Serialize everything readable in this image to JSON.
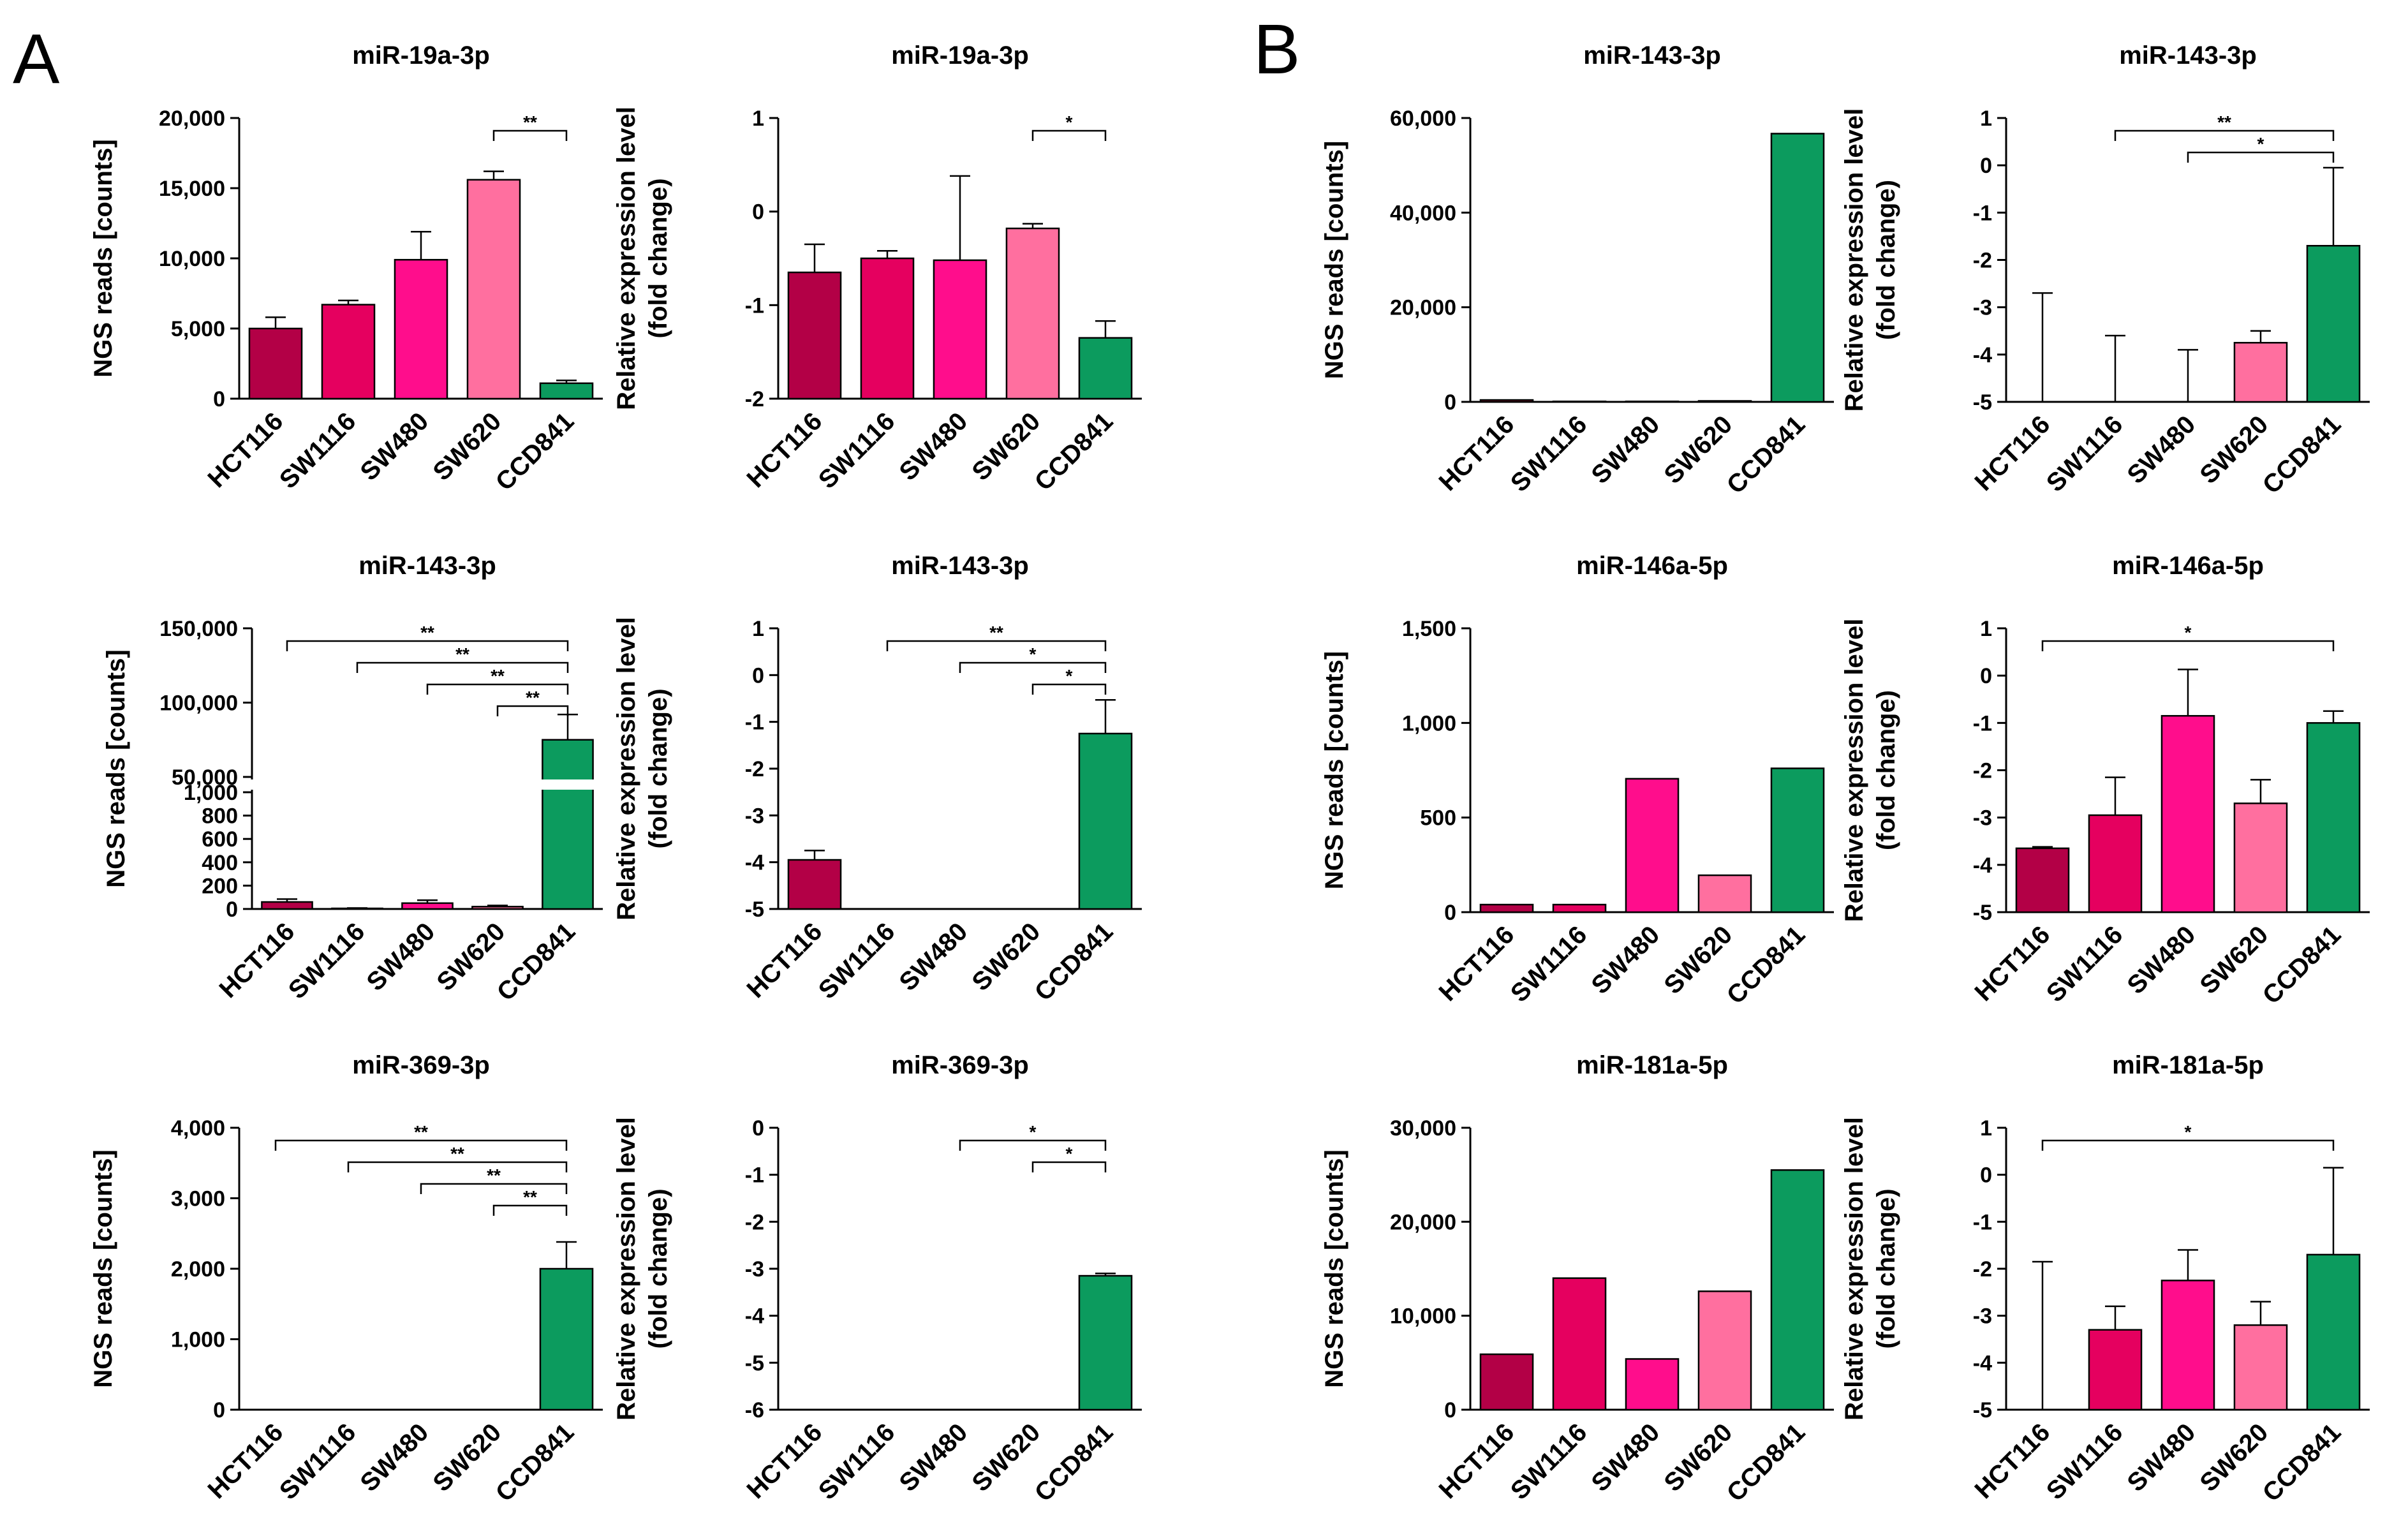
{
  "figure": {
    "panel_a_label": "A",
    "panel_b_label": "B"
  },
  "colors": {
    "HCT116": "#b30046",
    "SW1116": "#e5005f",
    "SW480": "#ff0d8c",
    "SW620": "#ff6f9f",
    "CCD841": "#0c9b5e"
  },
  "chart_data": [
    {
      "id": "A1",
      "panel": "A",
      "type": "bar",
      "title": "miR-19a-3p",
      "ylabel": "NGS reads [counts]",
      "ylabel2": "",
      "categories": [
        "HCT116",
        "SW1116",
        "SW480",
        "SW620",
        "CCD841"
      ],
      "values": [
        5000,
        6700,
        9900,
        15600,
        1100
      ],
      "errors": [
        800,
        300,
        2000,
        600,
        200
      ],
      "ylim": [
        0,
        20000
      ],
      "ticks": [
        0,
        5000,
        10000,
        15000,
        20000
      ],
      "tick_labels": [
        "0",
        "5,000",
        "10,000",
        "15,000",
        "20,000"
      ],
      "significance": [
        {
          "from": 3,
          "to": 4,
          "label": "**"
        }
      ]
    },
    {
      "id": "A2",
      "panel": "A",
      "type": "bar",
      "title": "miR-19a-3p",
      "ylabel": "Relative expression level",
      "ylabel2": "(fold change)",
      "categories": [
        "HCT116",
        "SW1116",
        "SW480",
        "SW620",
        "CCD841"
      ],
      "values": [
        -0.65,
        -0.5,
        -0.52,
        -0.18,
        -1.35
      ],
      "errors": [
        0.3,
        0.08,
        0.9,
        0.05,
        0.18
      ],
      "ylim": [
        -2,
        1
      ],
      "ticks": [
        -2,
        -1,
        0,
        1
      ],
      "tick_labels": [
        "-2",
        "-1",
        "0",
        "1"
      ],
      "significance": [
        {
          "from": 3,
          "to": 4,
          "label": "*"
        }
      ]
    },
    {
      "id": "A3",
      "panel": "A",
      "type": "bar",
      "title": "miR-143-3p",
      "ylabel": "NGS reads [counts]",
      "ylabel2": "",
      "categories": [
        "HCT116",
        "SW1116",
        "SW480",
        "SW620",
        "CCD841"
      ],
      "values": [
        60,
        5,
        50,
        20,
        75000
      ],
      "errors": [
        25,
        3,
        25,
        10,
        17000
      ],
      "broken_axis": true,
      "ylim_lower": [
        0,
        1000
      ],
      "ylim_upper": [
        50000,
        150000
      ],
      "ticks_lower": [
        0,
        200,
        400,
        600,
        800,
        1000
      ],
      "tick_labels_lower": [
        "0",
        "200",
        "400",
        "600",
        "800",
        "1,000"
      ],
      "ticks_upper": [
        50000,
        100000,
        150000
      ],
      "tick_labels_upper": [
        "50,000",
        "100,000",
        "150,000"
      ],
      "significance": [
        {
          "from": 0,
          "to": 4,
          "label": "**"
        },
        {
          "from": 1,
          "to": 4,
          "label": "**"
        },
        {
          "from": 2,
          "to": 4,
          "label": "**"
        },
        {
          "from": 3,
          "to": 4,
          "label": "**"
        }
      ]
    },
    {
      "id": "A4",
      "panel": "A",
      "type": "bar",
      "title": "miR-143-3p",
      "ylabel": "Relative expression level",
      "ylabel2": "(fold change)",
      "categories": [
        "HCT116",
        "SW1116",
        "SW480",
        "SW620",
        "CCD841"
      ],
      "values": [
        -3.95,
        -5,
        -5,
        -5,
        -1.25
      ],
      "errors": [
        0.2,
        0,
        0,
        0,
        0.72
      ],
      "ylim": [
        -5,
        1
      ],
      "ticks": [
        -5,
        -4,
        -3,
        -2,
        -1,
        0,
        1
      ],
      "tick_labels": [
        "-5",
        "-4",
        "-3",
        "-2",
        "-1",
        "0",
        "1"
      ],
      "significance": [
        {
          "from": 1,
          "to": 4,
          "label": "**"
        },
        {
          "from": 2,
          "to": 4,
          "label": "*"
        },
        {
          "from": 3,
          "to": 4,
          "label": "*"
        }
      ]
    },
    {
      "id": "A5",
      "panel": "A",
      "type": "bar",
      "title": "miR-369-3p",
      "ylabel": "NGS reads [counts]",
      "ylabel2": "",
      "categories": [
        "HCT116",
        "SW1116",
        "SW480",
        "SW620",
        "CCD841"
      ],
      "values": [
        0,
        0,
        0,
        0,
        2000
      ],
      "errors": [
        0,
        0,
        0,
        0,
        380
      ],
      "ylim": [
        0,
        4000
      ],
      "ticks": [
        0,
        1000,
        2000,
        3000,
        4000
      ],
      "tick_labels": [
        "0",
        "1,000",
        "2,000",
        "3,000",
        "4,000"
      ],
      "significance": [
        {
          "from": 0,
          "to": 4,
          "label": "**"
        },
        {
          "from": 1,
          "to": 4,
          "label": "**"
        },
        {
          "from": 2,
          "to": 4,
          "label": "**"
        },
        {
          "from": 3,
          "to": 4,
          "label": "**"
        }
      ]
    },
    {
      "id": "A6",
      "panel": "A",
      "type": "bar",
      "title": "miR-369-3p",
      "ylabel": "Relative expression level",
      "ylabel2": "(fold change)",
      "categories": [
        "HCT116",
        "SW1116",
        "SW480",
        "SW620",
        "CCD841"
      ],
      "values": [
        -6,
        -6,
        -6,
        -6,
        -3.15
      ],
      "errors": [
        0,
        0,
        0,
        0,
        0.05
      ],
      "ylim": [
        -6,
        0
      ],
      "ticks": [
        -6,
        -5,
        -4,
        -3,
        -2,
        -1,
        0
      ],
      "tick_labels": [
        "-6",
        "-5",
        "-4",
        "-3",
        "-2",
        "-1",
        "0"
      ],
      "significance": [
        {
          "from": 2,
          "to": 4,
          "label": "*"
        },
        {
          "from": 3,
          "to": 4,
          "label": "*"
        }
      ]
    },
    {
      "id": "B1",
      "panel": "B",
      "type": "bar",
      "title": "miR-143-3p",
      "ylabel": "NGS reads [counts]",
      "ylabel2": "",
      "categories": [
        "HCT116",
        "SW1116",
        "SW480",
        "SW620",
        "CCD841"
      ],
      "values": [
        400,
        100,
        100,
        200,
        56700
      ],
      "errors": [
        0,
        0,
        0,
        0,
        0
      ],
      "ylim": [
        0,
        60000
      ],
      "ticks": [
        0,
        20000,
        40000,
        60000
      ],
      "tick_labels": [
        "0",
        "20,000",
        "40,000",
        "60,000"
      ],
      "significance": []
    },
    {
      "id": "B2",
      "panel": "B",
      "type": "bar",
      "title": "miR-143-3p",
      "ylabel": "Relative expression level",
      "ylabel2": "(fold change)",
      "categories": [
        "HCT116",
        "SW1116",
        "SW480",
        "SW620",
        "CCD841"
      ],
      "values": [
        -5,
        -5,
        -5,
        -3.75,
        -1.7
      ],
      "errors": [
        2.3,
        1.4,
        1.1,
        0.25,
        1.65
      ],
      "ylim": [
        -5,
        1
      ],
      "ticks": [
        -5,
        -4,
        -3,
        -2,
        -1,
        0,
        1
      ],
      "tick_labels": [
        "-5",
        "-4",
        "-3",
        "-2",
        "-1",
        "0",
        "1"
      ],
      "significance": [
        {
          "from": 1,
          "to": 4,
          "label": "**"
        },
        {
          "from": 2,
          "to": 4,
          "label": "*"
        }
      ]
    },
    {
      "id": "B3",
      "panel": "B",
      "type": "bar",
      "title": "miR-146a-5p",
      "ylabel": "NGS reads [counts]",
      "ylabel2": "",
      "categories": [
        "HCT116",
        "SW1116",
        "SW480",
        "SW620",
        "CCD841"
      ],
      "values": [
        40,
        40,
        705,
        195,
        760
      ],
      "errors": [
        0,
        0,
        0,
        0,
        0
      ],
      "ylim": [
        0,
        1500
      ],
      "ticks": [
        0,
        500,
        1000,
        1500
      ],
      "tick_labels": [
        "0",
        "500",
        "1,000",
        "1,500"
      ],
      "significance": []
    },
    {
      "id": "B4",
      "panel": "B",
      "type": "bar",
      "title": "miR-146a-5p",
      "ylabel": "Relative expression level",
      "ylabel2": "(fold change)",
      "categories": [
        "HCT116",
        "SW1116",
        "SW480",
        "SW620",
        "CCD841"
      ],
      "values": [
        -3.65,
        -2.95,
        -0.85,
        -2.7,
        -1.0
      ],
      "errors": [
        0.03,
        0.8,
        0.98,
        0.5,
        0.25
      ],
      "ylim": [
        -5,
        1
      ],
      "ticks": [
        -5,
        -4,
        -3,
        -2,
        -1,
        0,
        1
      ],
      "tick_labels": [
        "-5",
        "-4",
        "-3",
        "-2",
        "-1",
        "0",
        "1"
      ],
      "significance": [
        {
          "from": 0,
          "to": 4,
          "label": "*"
        }
      ]
    },
    {
      "id": "B5",
      "panel": "B",
      "type": "bar",
      "title": "miR-181a-5p",
      "ylabel": "NGS reads [counts]",
      "ylabel2": "",
      "categories": [
        "HCT116",
        "SW1116",
        "SW480",
        "SW620",
        "CCD841"
      ],
      "values": [
        5900,
        14000,
        5400,
        12600,
        25500
      ],
      "errors": [
        0,
        0,
        0,
        0,
        0
      ],
      "ylim": [
        0,
        30000
      ],
      "ticks": [
        0,
        10000,
        20000,
        30000
      ],
      "tick_labels": [
        "0",
        "10,000",
        "20,000",
        "30,000"
      ],
      "significance": []
    },
    {
      "id": "B6",
      "panel": "B",
      "type": "bar",
      "title": "miR-181a-5p",
      "ylabel": "Relative expression level",
      "ylabel2": "(fold change)",
      "categories": [
        "HCT116",
        "SW1116",
        "SW480",
        "SW620",
        "CCD841"
      ],
      "values": [
        -5,
        -3.3,
        -2.25,
        -3.2,
        -1.7
      ],
      "errors": [
        3.15,
        0.5,
        0.65,
        0.5,
        1.85
      ],
      "ylim": [
        -5,
        1
      ],
      "ticks": [
        -5,
        -4,
        -3,
        -2,
        -1,
        0,
        1
      ],
      "tick_labels": [
        "-5",
        "-4",
        "-3",
        "-2",
        "-1",
        "0",
        "1"
      ],
      "significance": [
        {
          "from": 0,
          "to": 4,
          "label": "*"
        }
      ]
    }
  ]
}
